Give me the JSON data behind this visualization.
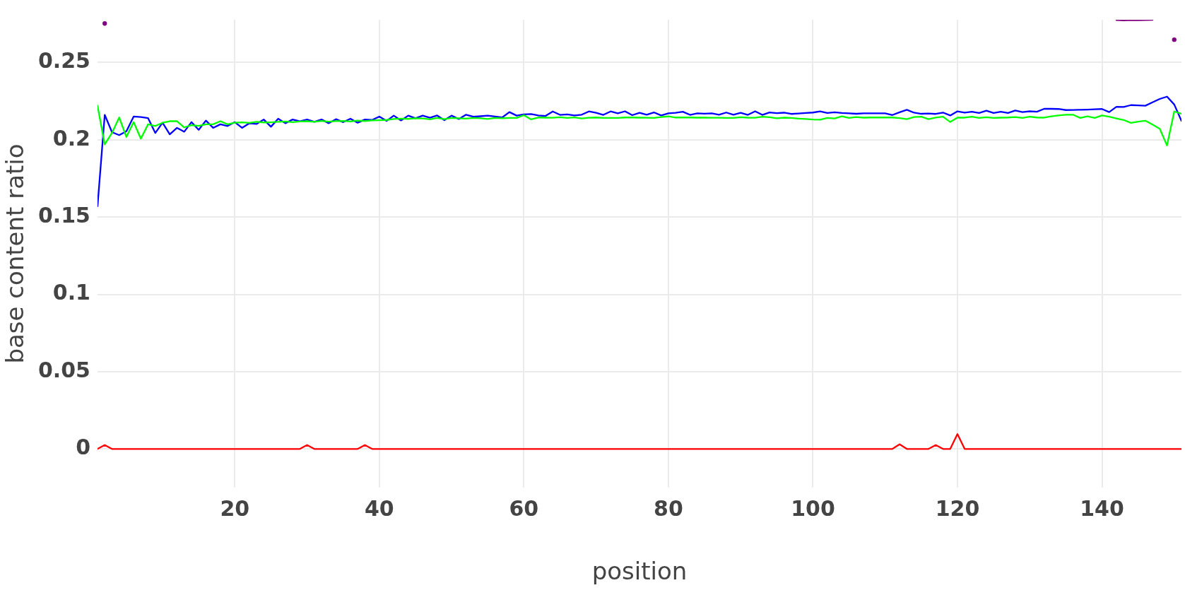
{
  "chart_data": {
    "type": "line",
    "xlabel": "position",
    "ylabel": "base content ratio",
    "x": [
      1,
      2,
      3,
      4,
      5,
      6,
      7,
      8,
      9,
      10,
      11,
      12,
      13,
      14,
      15,
      16,
      17,
      18,
      19,
      20,
      21,
      22,
      23,
      24,
      25,
      26,
      27,
      28,
      29,
      30,
      31,
      32,
      33,
      34,
      35,
      36,
      37,
      38,
      39,
      40,
      41,
      42,
      43,
      44,
      45,
      46,
      47,
      48,
      49,
      50,
      51,
      52,
      53,
      54,
      55,
      56,
      57,
      58,
      59,
      60,
      61,
      62,
      63,
      64,
      65,
      66,
      67,
      68,
      69,
      70,
      71,
      72,
      73,
      74,
      75,
      76,
      77,
      78,
      79,
      80,
      81,
      82,
      83,
      84,
      85,
      86,
      87,
      88,
      89,
      90,
      91,
      92,
      93,
      94,
      95,
      96,
      97,
      98,
      99,
      100,
      101,
      102,
      103,
      104,
      105,
      106,
      107,
      108,
      109,
      110,
      111,
      112,
      113,
      114,
      115,
      116,
      117,
      118,
      119,
      120,
      121,
      122,
      123,
      124,
      125,
      126,
      127,
      128,
      129,
      130,
      131,
      132,
      133,
      134,
      135,
      136,
      137,
      138,
      139,
      140,
      141,
      142,
      143,
      144,
      145,
      146,
      147,
      148,
      149,
      150,
      151
    ],
    "series": [
      {
        "color": "#800080",
        "values": [
          null,
          0.2752,
          null,
          null,
          null,
          null,
          null,
          null,
          null,
          null,
          null,
          null,
          null,
          null,
          null,
          null,
          null,
          null,
          null,
          null,
          null,
          null,
          null,
          null,
          null,
          null,
          null,
          null,
          null,
          null,
          null,
          null,
          null,
          null,
          null,
          null,
          null,
          null,
          null,
          null,
          null,
          null,
          null,
          null,
          null,
          null,
          null,
          null,
          null,
          null,
          null,
          null,
          null,
          null,
          null,
          null,
          null,
          null,
          null,
          null,
          null,
          null,
          null,
          null,
          null,
          null,
          null,
          null,
          null,
          null,
          null,
          null,
          null,
          null,
          null,
          null,
          null,
          null,
          null,
          null,
          null,
          null,
          null,
          null,
          null,
          null,
          null,
          null,
          null,
          null,
          null,
          null,
          null,
          null,
          null,
          null,
          null,
          null,
          null,
          null,
          null,
          null,
          null,
          null,
          null,
          null,
          null,
          null,
          null,
          null,
          null,
          null,
          null,
          null,
          null,
          null,
          null,
          null,
          null,
          null,
          null,
          null,
          null,
          null,
          null,
          null,
          null,
          null,
          null,
          null,
          null,
          null,
          null,
          null,
          null,
          null,
          null,
          null,
          null,
          null,
          null,
          0.2774,
          0.2772,
          0.2774,
          0.2773,
          0.2774,
          0.2775,
          null,
          null,
          0.2647,
          null
        ]
      },
      {
        "color": "#00ff00",
        "values": [
          0.222,
          0.197,
          0.2044,
          0.2144,
          0.2018,
          0.2114,
          0.2007,
          0.21,
          0.2089,
          0.211,
          0.212,
          0.212,
          0.208,
          0.2094,
          0.209,
          0.21,
          0.21,
          0.212,
          0.21,
          0.211,
          0.2113,
          0.2109,
          0.2116,
          0.2112,
          0.2113,
          0.2116,
          0.2118,
          0.2114,
          0.2118,
          0.212,
          0.2116,
          0.2122,
          0.2117,
          0.2121,
          0.2122,
          0.2118,
          0.2124,
          0.2121,
          0.2125,
          0.2126,
          0.2128,
          0.2134,
          0.2137,
          0.2135,
          0.2139,
          0.2138,
          0.2132,
          0.2141,
          0.2133,
          0.2141,
          0.2139,
          0.2137,
          0.2141,
          0.2139,
          0.2134,
          0.2141,
          0.2139,
          0.2141,
          0.2141,
          0.2159,
          0.2132,
          0.2144,
          0.2143,
          0.2142,
          0.2146,
          0.2141,
          0.2145,
          0.2138,
          0.2142,
          0.2144,
          0.2141,
          0.2141,
          0.2141,
          0.2144,
          0.2144,
          0.2143,
          0.2142,
          0.2141,
          0.2147,
          0.2151,
          0.2144,
          0.2144,
          0.2144,
          0.2143,
          0.2143,
          0.2142,
          0.2142,
          0.2141,
          0.2141,
          0.2146,
          0.2143,
          0.2142,
          0.2149,
          0.2146,
          0.2139,
          0.2143,
          0.2141,
          0.2137,
          0.2134,
          0.2131,
          0.213,
          0.2141,
          0.2138,
          0.2151,
          0.2141,
          0.2147,
          0.2143,
          0.2144,
          0.2144,
          0.2144,
          0.2144,
          0.214,
          0.2133,
          0.2147,
          0.2149,
          0.2133,
          0.2143,
          0.2149,
          0.2115,
          0.2143,
          0.2143,
          0.2149,
          0.2141,
          0.2146,
          0.2141,
          0.2143,
          0.2144,
          0.2147,
          0.2141,
          0.2149,
          0.2144,
          0.2143,
          0.2151,
          0.2157,
          0.2162,
          0.2162,
          0.2141,
          0.2152,
          0.2141,
          0.2157,
          0.2149,
          0.2138,
          0.2128,
          0.2109,
          0.2117,
          0.2123,
          0.2098,
          0.2071,
          0.1963,
          0.2183,
          0.2168
        ]
      },
      {
        "color": "#0000ff",
        "values": [
          0.157,
          0.2161,
          0.2049,
          0.203,
          0.2055,
          0.215,
          0.2147,
          0.214,
          0.2044,
          0.211,
          0.2035,
          0.2077,
          0.2052,
          0.2114,
          0.2064,
          0.2124,
          0.2077,
          0.21,
          0.2089,
          0.2114,
          0.2077,
          0.2106,
          0.2102,
          0.2131,
          0.2084,
          0.2136,
          0.2107,
          0.2131,
          0.212,
          0.2131,
          0.2116,
          0.2131,
          0.2107,
          0.2133,
          0.2114,
          0.2136,
          0.211,
          0.2131,
          0.2128,
          0.215,
          0.2122,
          0.2156,
          0.2125,
          0.2156,
          0.2139,
          0.2156,
          0.2142,
          0.2157,
          0.2127,
          0.2156,
          0.2134,
          0.2162,
          0.2149,
          0.2152,
          0.2156,
          0.215,
          0.2144,
          0.2179,
          0.2156,
          0.2164,
          0.2166,
          0.2157,
          0.2154,
          0.2183,
          0.2161,
          0.2164,
          0.2157,
          0.2162,
          0.2183,
          0.2174,
          0.2161,
          0.2183,
          0.2171,
          0.2184,
          0.2159,
          0.2174,
          0.2162,
          0.2177,
          0.2157,
          0.2171,
          0.2174,
          0.2181,
          0.2161,
          0.2171,
          0.2169,
          0.2171,
          0.2162,
          0.2176,
          0.2162,
          0.2174,
          0.2161,
          0.2184,
          0.2161,
          0.2177,
          0.2172,
          0.2175,
          0.2167,
          0.217,
          0.2173,
          0.2176,
          0.2183,
          0.2173,
          0.2178,
          0.2173,
          0.2171,
          0.2168,
          0.2171,
          0.2171,
          0.2171,
          0.2171,
          0.216,
          0.2178,
          0.2194,
          0.2175,
          0.2168,
          0.217,
          0.2167,
          0.2176,
          0.2157,
          0.2184,
          0.2175,
          0.2181,
          0.2173,
          0.2188,
          0.2173,
          0.2181,
          0.2173,
          0.2189,
          0.2179,
          0.2184,
          0.2181,
          0.22,
          0.22,
          0.2199,
          0.2192,
          0.2193,
          0.2194,
          0.2195,
          0.2197,
          0.2199,
          0.2179,
          0.2213,
          0.2212,
          0.2224,
          0.2222,
          0.222,
          0.2242,
          0.2264,
          0.2279,
          0.2228,
          0.2122
        ]
      },
      {
        "color": "#ff0000",
        "values": [
          0,
          0.0025,
          0,
          0,
          0,
          0,
          0,
          0,
          0,
          0,
          0,
          0,
          0,
          0,
          0,
          0,
          0,
          0,
          0,
          0,
          0,
          0,
          0,
          0,
          0,
          0,
          0,
          0,
          0,
          0.0025,
          0,
          0,
          0,
          0,
          0,
          0,
          0,
          0.0025,
          0,
          0,
          0,
          0,
          0,
          0,
          0,
          0,
          0,
          0,
          0,
          0,
          0,
          0,
          0,
          0,
          0,
          0,
          0,
          0,
          0,
          0,
          0,
          0,
          0,
          0,
          0,
          0,
          0,
          0,
          0,
          0,
          0,
          0,
          0,
          0,
          0,
          0,
          0,
          0,
          0,
          0,
          0,
          0,
          0,
          0,
          0,
          0,
          0,
          0,
          0,
          0,
          0,
          0,
          0,
          0,
          0,
          0,
          0,
          0,
          0,
          0,
          0,
          0,
          0,
          0,
          0,
          0,
          0,
          0,
          0,
          0,
          0,
          0.003,
          0,
          0,
          0,
          0,
          0.0025,
          0,
          0,
          0.0096,
          0,
          0,
          0,
          0,
          0,
          0,
          0,
          0,
          0,
          0,
          0,
          0,
          0,
          0,
          0,
          0,
          0,
          0,
          0,
          0,
          0,
          0,
          0,
          0,
          0,
          0,
          0,
          0,
          0,
          0,
          0
        ]
      }
    ],
    "xlim": [
      1,
      151
    ],
    "xticks": [
      20,
      40,
      60,
      80,
      100,
      120,
      140
    ],
    "ylim": [
      -0.025,
      0.2776
    ],
    "yticks": [
      0,
      0.05,
      0.1,
      0.15,
      0.2,
      0.25
    ],
    "grid": true,
    "legend": false,
    "marker": "none",
    "line_style": "solid"
  }
}
